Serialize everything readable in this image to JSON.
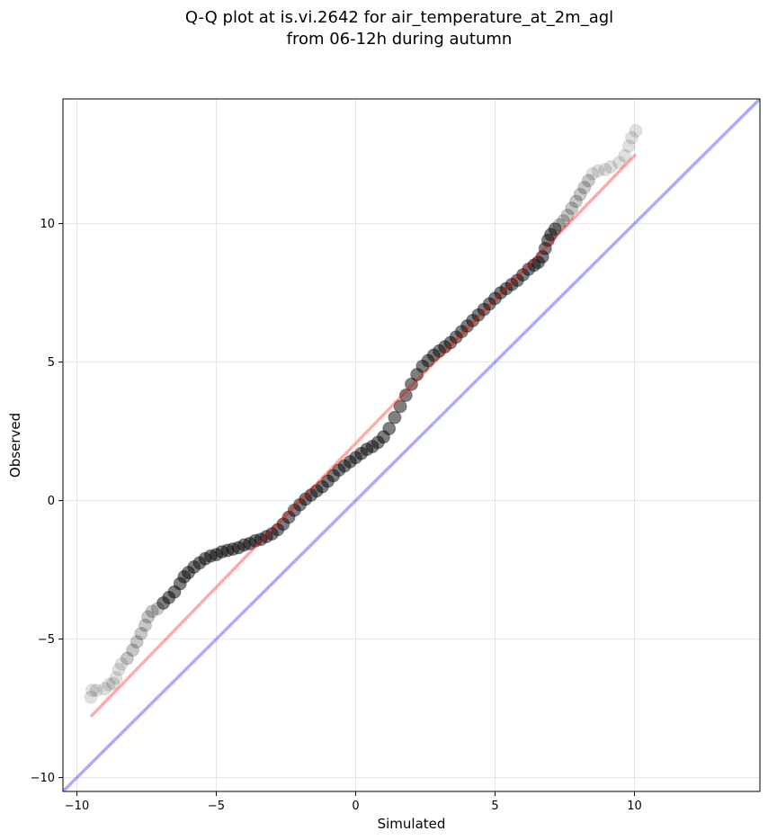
{
  "chart_data": {
    "type": "scatter",
    "title": "Q-Q plot at is.vi.2642 for air_temperature_at_2m_agl",
    "subtitle": "from 06-12h during autumn",
    "xlabel": "Simulated",
    "ylabel": "Observed",
    "xlim": [
      -10.5,
      14.5
    ],
    "ylim": [
      -10.5,
      14.5
    ],
    "xticks": [
      -10,
      -5,
      0,
      5,
      10
    ],
    "yticks": [
      -10,
      -5,
      0,
      5,
      10
    ],
    "xtick_labels": [
      "−10",
      "−5",
      "0",
      "5",
      "10"
    ],
    "ytick_labels": [
      "−10",
      "−5",
      "0",
      "5",
      "10"
    ],
    "grid": true,
    "colors": {
      "points": "#000000",
      "fit_line": "#ff0000",
      "identity_line": "#0000ff"
    },
    "fit_line": {
      "x": [
        -9.5,
        10.05
      ],
      "y": [
        -7.8,
        12.5
      ]
    },
    "identity_line": {
      "x": [
        -10.5,
        14.5
      ],
      "y": [
        -10.5,
        14.5
      ]
    },
    "series": [
      {
        "points": [
          [
            -9.5,
            -7.1
          ],
          [
            -9.45,
            -6.85
          ],
          [
            -9.3,
            -6.85
          ],
          [
            -9.0,
            -6.8
          ],
          [
            -8.85,
            -6.65
          ],
          [
            -8.7,
            -6.6
          ],
          [
            -8.6,
            -6.4
          ],
          [
            -8.5,
            -6.1
          ],
          [
            -8.4,
            -5.9
          ],
          [
            -8.2,
            -5.7
          ],
          [
            -8.0,
            -5.4
          ],
          [
            -7.85,
            -5.1
          ],
          [
            -7.7,
            -4.8
          ],
          [
            -7.55,
            -4.5
          ],
          [
            -7.45,
            -4.2
          ],
          [
            -7.3,
            -4.0
          ],
          [
            -7.1,
            -3.9
          ],
          [
            -6.9,
            -3.7
          ],
          [
            -6.7,
            -3.5
          ],
          [
            -6.5,
            -3.3
          ],
          [
            -6.3,
            -3.0
          ],
          [
            -6.15,
            -2.75
          ],
          [
            -6.0,
            -2.6
          ],
          [
            -5.8,
            -2.4
          ],
          [
            -5.6,
            -2.25
          ],
          [
            -5.4,
            -2.1
          ],
          [
            -5.2,
            -2.0
          ],
          [
            -5.0,
            -1.95
          ],
          [
            -4.8,
            -1.85
          ],
          [
            -4.6,
            -1.8
          ],
          [
            -4.4,
            -1.75
          ],
          [
            -4.2,
            -1.7
          ],
          [
            -4.0,
            -1.6
          ],
          [
            -3.8,
            -1.55
          ],
          [
            -3.6,
            -1.45
          ],
          [
            -3.4,
            -1.4
          ],
          [
            -3.2,
            -1.3
          ],
          [
            -3.0,
            -1.2
          ],
          [
            -2.8,
            -1.05
          ],
          [
            -2.6,
            -0.85
          ],
          [
            -2.4,
            -0.6
          ],
          [
            -2.2,
            -0.35
          ],
          [
            -2.0,
            -0.15
          ],
          [
            -1.8,
            0.05
          ],
          [
            -1.6,
            0.2
          ],
          [
            -1.4,
            0.35
          ],
          [
            -1.2,
            0.5
          ],
          [
            -1.0,
            0.7
          ],
          [
            -0.8,
            0.9
          ],
          [
            -0.6,
            1.1
          ],
          [
            -0.4,
            1.25
          ],
          [
            -0.2,
            1.4
          ],
          [
            0.0,
            1.55
          ],
          [
            0.2,
            1.7
          ],
          [
            0.4,
            1.85
          ],
          [
            0.6,
            1.95
          ],
          [
            0.8,
            2.1
          ],
          [
            1.0,
            2.3
          ],
          [
            1.2,
            2.6
          ],
          [
            1.4,
            3.0
          ],
          [
            1.6,
            3.4
          ],
          [
            1.8,
            3.8
          ],
          [
            2.0,
            4.2
          ],
          [
            2.2,
            4.55
          ],
          [
            2.4,
            4.85
          ],
          [
            2.6,
            5.05
          ],
          [
            2.8,
            5.25
          ],
          [
            3.0,
            5.4
          ],
          [
            3.2,
            5.55
          ],
          [
            3.4,
            5.7
          ],
          [
            3.6,
            5.9
          ],
          [
            3.8,
            6.1
          ],
          [
            4.0,
            6.3
          ],
          [
            4.2,
            6.5
          ],
          [
            4.4,
            6.7
          ],
          [
            4.6,
            6.9
          ],
          [
            4.8,
            7.1
          ],
          [
            5.0,
            7.3
          ],
          [
            5.2,
            7.5
          ],
          [
            5.4,
            7.65
          ],
          [
            5.6,
            7.8
          ],
          [
            5.8,
            7.95
          ],
          [
            6.0,
            8.15
          ],
          [
            6.2,
            8.35
          ],
          [
            6.4,
            8.5
          ],
          [
            6.55,
            8.6
          ],
          [
            6.7,
            8.8
          ],
          [
            6.8,
            9.1
          ],
          [
            6.9,
            9.4
          ],
          [
            7.0,
            9.6
          ],
          [
            7.15,
            9.8
          ],
          [
            7.3,
            9.95
          ],
          [
            7.45,
            10.1
          ],
          [
            7.6,
            10.3
          ],
          [
            7.75,
            10.55
          ],
          [
            7.9,
            10.8
          ],
          [
            8.05,
            11.05
          ],
          [
            8.2,
            11.3
          ],
          [
            8.35,
            11.55
          ],
          [
            8.5,
            11.8
          ],
          [
            8.7,
            11.9
          ],
          [
            8.95,
            11.95
          ],
          [
            9.15,
            12.05
          ],
          [
            9.45,
            12.2
          ],
          [
            9.65,
            12.45
          ],
          [
            9.8,
            12.8
          ],
          [
            9.9,
            13.1
          ],
          [
            10.05,
            13.35
          ]
        ]
      }
    ]
  }
}
